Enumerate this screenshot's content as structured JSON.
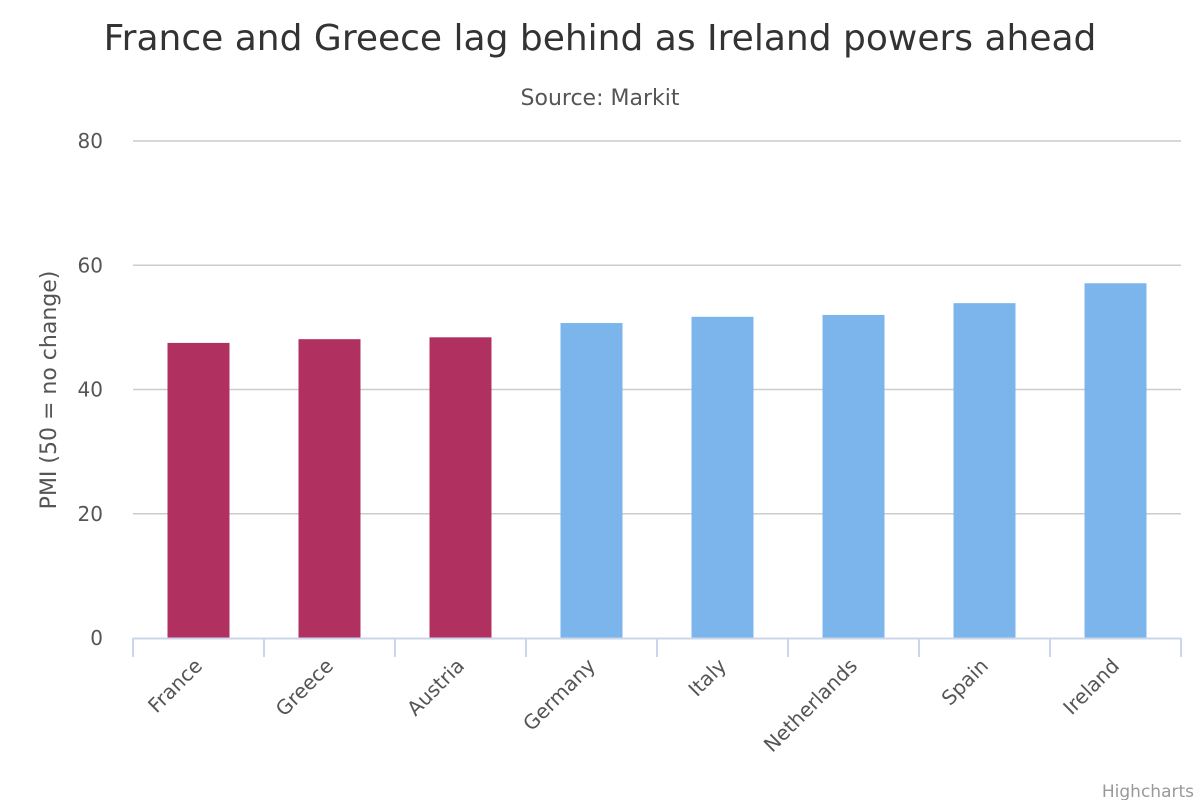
{
  "chart_data": {
    "type": "bar",
    "title": "France and Greece lag behind as Ireland powers ahead",
    "subtitle": "Source: Markit",
    "xlabel": "",
    "ylabel": "PMI (50 = no change)",
    "ylim": [
      0,
      80
    ],
    "yticks": [
      0,
      20,
      40,
      60,
      80
    ],
    "grid": true,
    "categories": [
      "France",
      "Greece",
      "Austria",
      "Germany",
      "Italy",
      "Netherlands",
      "Spain",
      "Ireland"
    ],
    "values": [
      47.5,
      48.1,
      48.4,
      50.7,
      51.7,
      52.0,
      53.9,
      57.1
    ],
    "colors": [
      "#b03060",
      "#b03060",
      "#b03060",
      "#7cb5ec",
      "#7cb5ec",
      "#7cb5ec",
      "#7cb5ec",
      "#7cb5ec"
    ]
  },
  "credits": "Highcharts",
  "style": {
    "grid_color": "#cccccc",
    "axis_color": "#ccd6eb"
  }
}
